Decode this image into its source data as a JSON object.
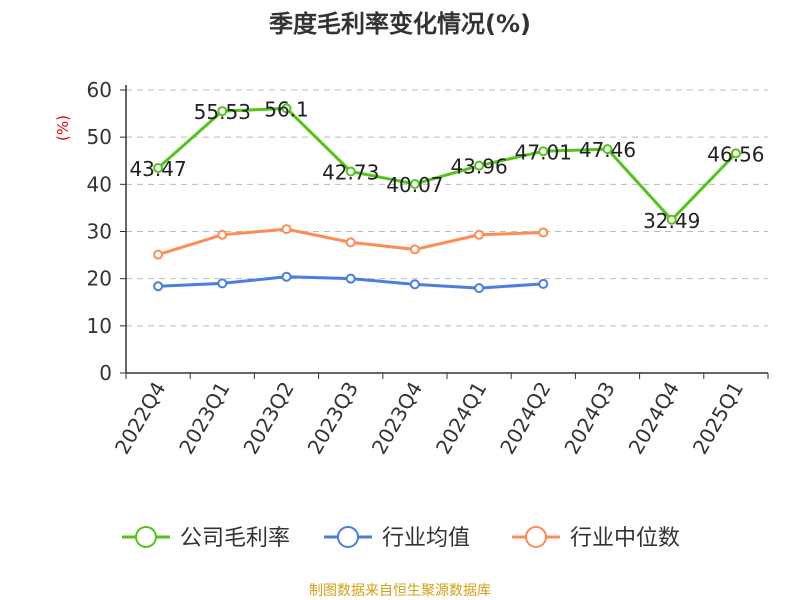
{
  "chart_data": {
    "type": "line",
    "title": "季度毛利率变化情况(%)",
    "ylabel": "(%)",
    "xlabel": "",
    "ylim": [
      0,
      60
    ],
    "yticks": [
      0,
      10,
      20,
      30,
      40,
      50,
      60
    ],
    "grid": true,
    "legend_position": "bottom",
    "categories": [
      "2022Q4",
      "2023Q1",
      "2023Q2",
      "2023Q3",
      "2023Q4",
      "2024Q1",
      "2024Q2",
      "2024Q3",
      "2024Q4",
      "2025Q1"
    ],
    "series": [
      {
        "name": "公司毛利率",
        "color": "#52c41a",
        "values": [
          43.47,
          55.53,
          56.1,
          42.73,
          40.07,
          43.96,
          47.01,
          47.46,
          32.49,
          46.56
        ],
        "labels": [
          "43.47",
          "55.53",
          "56.1",
          "42.73",
          "40.07",
          "43.96",
          "47.01",
          "47.46",
          "32.49",
          "46.56"
        ]
      },
      {
        "name": "行业均值",
        "color": "#4a7ee0",
        "values": [
          18.4,
          19.0,
          20.4,
          20.0,
          18.8,
          18.0,
          18.9,
          null,
          null,
          null
        ]
      },
      {
        "name": "行业中位数",
        "color": "#ff8c55",
        "values": [
          25.1,
          29.3,
          30.5,
          27.7,
          26.2,
          29.3,
          29.8,
          null,
          null,
          null
        ]
      }
    ]
  },
  "source": "制图数据来自恒生聚源数据库"
}
